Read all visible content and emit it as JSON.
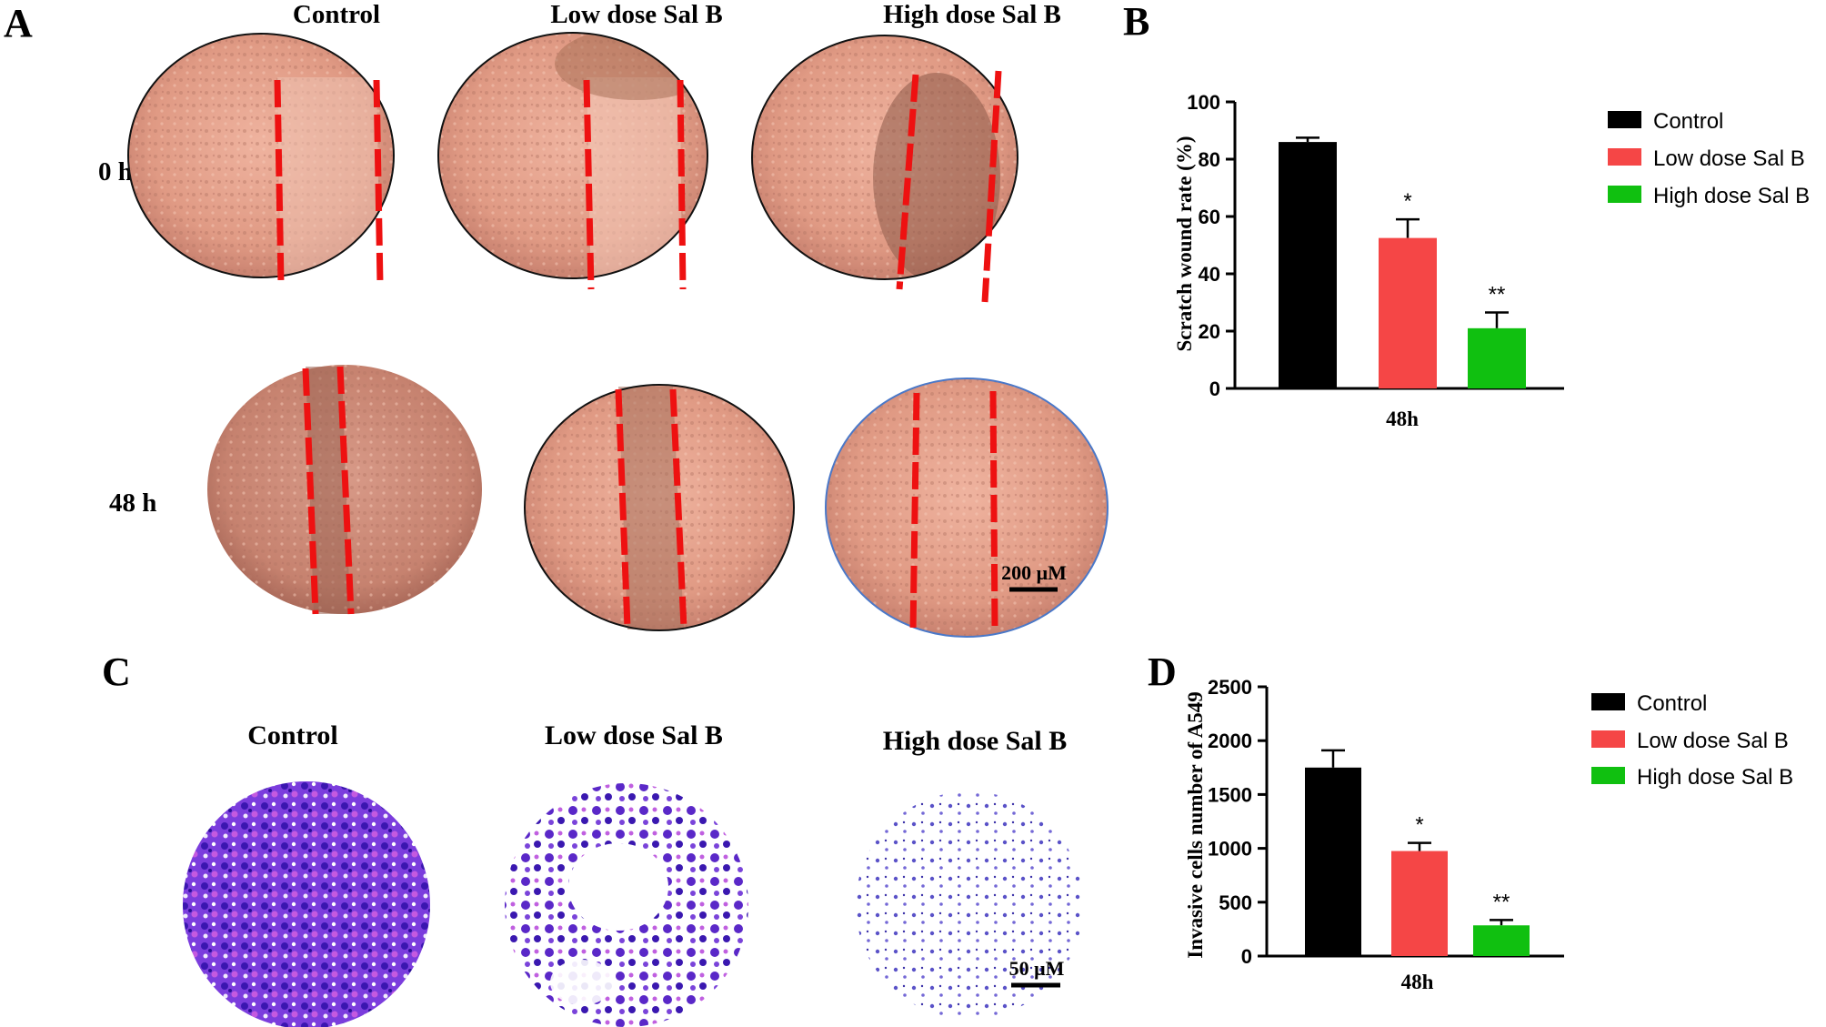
{
  "panel_letters": [
    "A",
    "B",
    "C",
    "D"
  ],
  "panel_a": {
    "columns": [
      "Control",
      "Low dose Sal B",
      "High dose Sal B"
    ],
    "rows": [
      "0 h",
      "48 h"
    ],
    "scale_bar": "200 μM"
  },
  "panel_c": {
    "columns": [
      "Control",
      "Low dose Sal B",
      "High dose Sal B"
    ],
    "scale_bar": "50 μM"
  },
  "colors": {
    "control": "#000000",
    "low": "#f54646",
    "high": "#10c010",
    "scratch_line": "#ee1111",
    "tissue": "#e9a48e",
    "stain": "#6a2ad0"
  },
  "chart_data": [
    {
      "type": "bar",
      "panel": "B",
      "categories": [
        "Control",
        "Low dose Sal B",
        "High dose Sal B"
      ],
      "values": [
        86,
        52.5,
        21
      ],
      "errors": [
        1.5,
        6.5,
        5.5
      ],
      "significance": [
        "",
        "*",
        "**"
      ],
      "xlabel": "48h",
      "ylabel": "Scratch wound rate (%)",
      "ylim": [
        0,
        100
      ],
      "yticks": [
        0,
        20,
        40,
        60,
        80,
        100
      ],
      "legend": [
        "Control",
        "Low dose Sal B",
        "High dose Sal B"
      ]
    },
    {
      "type": "bar",
      "panel": "D",
      "categories": [
        "Control",
        "Low dose Sal B",
        "High dose Sal B"
      ],
      "values": [
        1750,
        975,
        285
      ],
      "errors": [
        160,
        75,
        50
      ],
      "significance": [
        "",
        "*",
        "**"
      ],
      "xlabel": "48h",
      "ylabel": "Invasive cells number of A549",
      "ylim": [
        0,
        2500
      ],
      "yticks": [
        0,
        500,
        1000,
        1500,
        2000,
        2500
      ],
      "legend": [
        "Control",
        "Low dose Sal B",
        "High dose Sal B"
      ]
    }
  ]
}
